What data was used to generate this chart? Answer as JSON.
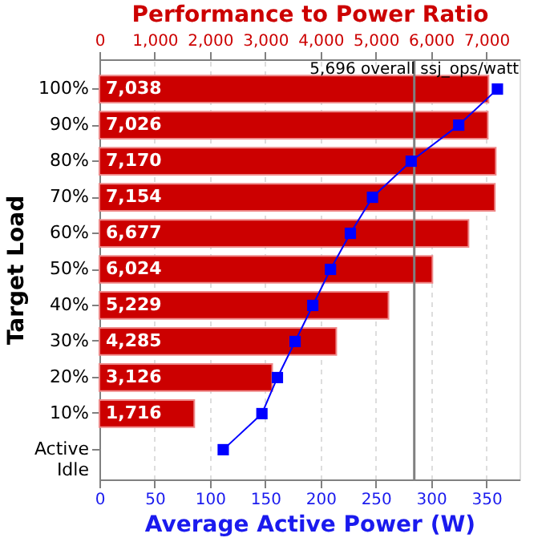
{
  "chart_data": {
    "type": "bar",
    "orientation": "horizontal",
    "x2label": "Performance to Power Ratio",
    "xlabel": "Average Active Power (W)",
    "ylabel": "Target Load",
    "categories": [
      "100%",
      "90%",
      "80%",
      "70%",
      "60%",
      "50%",
      "40%",
      "30%",
      "20%",
      "10%",
      "Active Idle"
    ],
    "series": [
      {
        "axis": "x2",
        "color": "#cc0000",
        "values": [
          7038,
          7026,
          7170,
          7154,
          6677,
          6024,
          5229,
          4285,
          3126,
          1716,
          null
        ],
        "value_labels": [
          "7,038",
          "7,026",
          "7,170",
          "7,154",
          "6,677",
          "6,024",
          "5,229",
          "4,285",
          "3,126",
          "1,716",
          null
        ]
      },
      {
        "type": "line",
        "color": "#0000ff",
        "marker": "square",
        "values": [
          360,
          325,
          282,
          247,
          227,
          209,
          193,
          177,
          161,
          147,
          112
        ]
      }
    ],
    "xlim": [
      0,
      380
    ],
    "xticks": [
      0,
      50,
      100,
      150,
      200,
      250,
      300,
      350
    ],
    "x2lim": [
      0,
      7600
    ],
    "x2ticks": [
      0,
      {
        "value": 1000,
        "label": "1,000"
      },
      {
        "value": 2000,
        "label": "2,000"
      },
      {
        "value": 3000,
        "label": "3,000"
      },
      {
        "value": 4000,
        "label": "4,000"
      },
      {
        "value": 5000,
        "label": "5,000"
      },
      {
        "value": 6000,
        "label": "6,000"
      },
      {
        "value": 7000,
        "label": "7,000"
      }
    ],
    "ref_lines": [
      {
        "axis": "x2",
        "value": 5696,
        "label": "5,696 overall ssj_ops/watt",
        "color": "#808080"
      }
    ],
    "grid": "x"
  }
}
